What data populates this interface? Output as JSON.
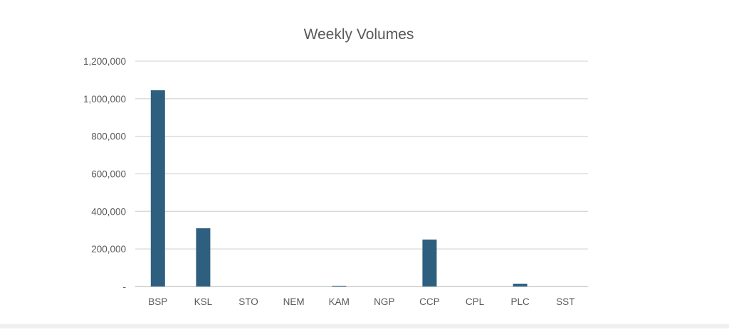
{
  "chart_data": {
    "type": "bar",
    "title": "Weekly Volumes",
    "xlabel": "",
    "ylabel": "",
    "categories": [
      "BSP",
      "KSL",
      "STO",
      "NEM",
      "KAM",
      "NGP",
      "CCP",
      "CPL",
      "PLC",
      "SST"
    ],
    "values": [
      1045000,
      310000,
      0,
      0,
      4000,
      0,
      250000,
      0,
      15000,
      0
    ],
    "ylim": [
      0,
      1200000
    ],
    "yticks": [
      0,
      200000,
      400000,
      600000,
      800000,
      1000000,
      1200000
    ],
    "ytick_labels": [
      "-",
      "200,000",
      "400,000",
      "600,000",
      "800,000",
      "1,000,000",
      "1,200,000"
    ],
    "grid": true,
    "bar_color": "#2e5f7f"
  }
}
